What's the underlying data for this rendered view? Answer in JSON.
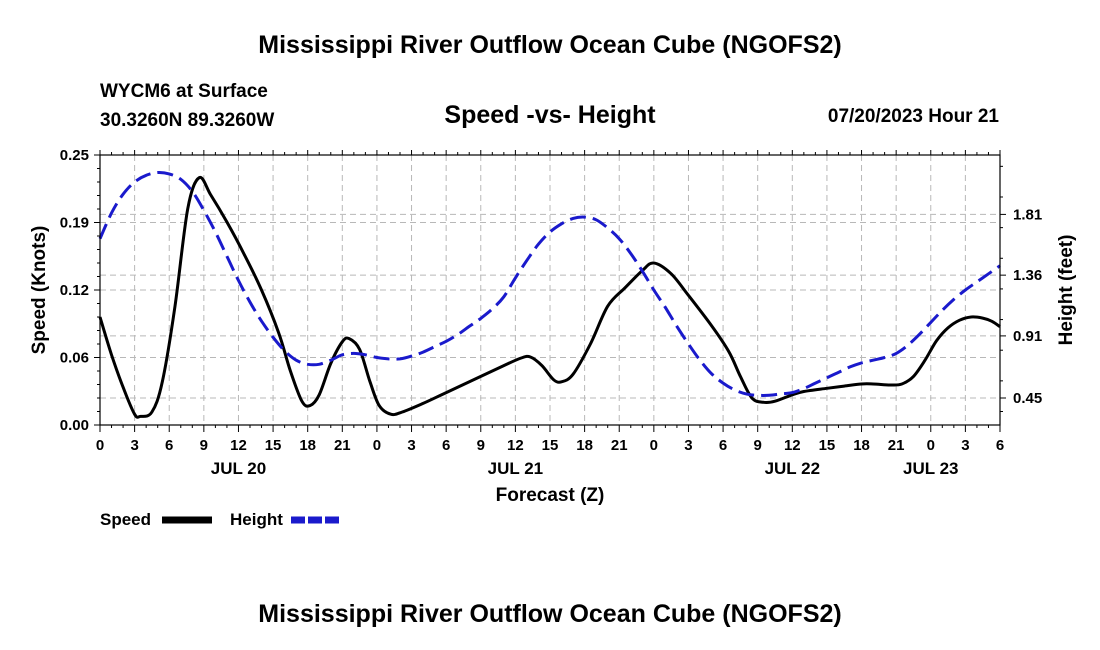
{
  "page": {
    "title": "Mississippi River Outflow Ocean Cube (NGOFS2)",
    "footer_title": "Mississippi River Outflow Ocean Cube (NGOFS2)",
    "station": "WYCM6 at Surface",
    "coords": "30.3260N  89.3260W",
    "subtitle": "Speed -vs- Height",
    "timestamp": "07/20/2023 Hour 21"
  },
  "chart_data": {
    "type": "line",
    "title": "Speed -vs- Height",
    "xlabel": "Forecast (Z)",
    "ylabel": "Speed (Knots)",
    "ylabel_right": "Height (feet)",
    "grid": true,
    "x_unit": "forecast hours from 07/20 00Z",
    "xlim": [
      0,
      78
    ],
    "ylim": [
      0,
      0.25
    ],
    "ylim_right": [
      0.25,
      2.25
    ],
    "y_ticks": [
      {
        "value": 0.0,
        "label": "0.00"
      },
      {
        "value": 0.0625,
        "label": "0.06"
      },
      {
        "value": 0.125,
        "label": "0.12"
      },
      {
        "value": 0.1875,
        "label": "0.19"
      },
      {
        "value": 0.25,
        "label": "0.25"
      }
    ],
    "y_ticks_right": [
      {
        "value": 0.45,
        "label": "0.45"
      },
      {
        "value": 0.91,
        "label": "0.91"
      },
      {
        "value": 1.36,
        "label": "1.36"
      },
      {
        "value": 1.81,
        "label": "1.81"
      }
    ],
    "x_ticks": [
      {
        "hour": 0,
        "label": "0"
      },
      {
        "hour": 3,
        "label": "3"
      },
      {
        "hour": 6,
        "label": "6"
      },
      {
        "hour": 9,
        "label": "9"
      },
      {
        "hour": 12,
        "label": "12"
      },
      {
        "hour": 15,
        "label": "15"
      },
      {
        "hour": 18,
        "label": "18"
      },
      {
        "hour": 21,
        "label": "21"
      },
      {
        "hour": 24,
        "label": "0"
      },
      {
        "hour": 27,
        "label": "3"
      },
      {
        "hour": 30,
        "label": "6"
      },
      {
        "hour": 33,
        "label": "9"
      },
      {
        "hour": 36,
        "label": "12"
      },
      {
        "hour": 39,
        "label": "15"
      },
      {
        "hour": 42,
        "label": "18"
      },
      {
        "hour": 45,
        "label": "21"
      },
      {
        "hour": 48,
        "label": "0"
      },
      {
        "hour": 51,
        "label": "3"
      },
      {
        "hour": 54,
        "label": "6"
      },
      {
        "hour": 57,
        "label": "9"
      },
      {
        "hour": 60,
        "label": "12"
      },
      {
        "hour": 63,
        "label": "15"
      },
      {
        "hour": 66,
        "label": "18"
      },
      {
        "hour": 69,
        "label": "21"
      },
      {
        "hour": 72,
        "label": "0"
      },
      {
        "hour": 75,
        "label": "3"
      },
      {
        "hour": 78,
        "label": "6"
      }
    ],
    "date_labels": [
      {
        "hour": 12,
        "label": "JUL 20"
      },
      {
        "hour": 36,
        "label": "JUL 21"
      },
      {
        "hour": 60,
        "label": "JUL 22"
      },
      {
        "hour": 72,
        "label": "JUL 23"
      }
    ],
    "series": [
      {
        "name": "Speed",
        "axis": "left",
        "color": "#000000",
        "dashed": false,
        "points": [
          [
            0,
            0.1
          ],
          [
            1,
            0.065
          ],
          [
            2,
            0.035
          ],
          [
            3,
            0.01
          ],
          [
            3.5,
            0.008
          ],
          [
            4.5,
            0.012
          ],
          [
            5.4,
            0.04
          ],
          [
            6.5,
            0.11
          ],
          [
            7.6,
            0.2
          ],
          [
            8.6,
            0.229
          ],
          [
            9.6,
            0.213
          ],
          [
            11,
            0.188
          ],
          [
            12.5,
            0.158
          ],
          [
            14,
            0.125
          ],
          [
            15.5,
            0.085
          ],
          [
            16.5,
            0.05
          ],
          [
            17.5,
            0.022
          ],
          [
            18.2,
            0.018
          ],
          [
            19,
            0.028
          ],
          [
            20,
            0.057
          ],
          [
            21,
            0.077
          ],
          [
            21.6,
            0.08
          ],
          [
            22.5,
            0.07
          ],
          [
            23.4,
            0.04
          ],
          [
            24.2,
            0.018
          ],
          [
            25.2,
            0.01
          ],
          [
            26.2,
            0.012
          ],
          [
            28,
            0.02
          ],
          [
            30,
            0.03
          ],
          [
            33,
            0.045
          ],
          [
            35,
            0.055
          ],
          [
            36.5,
            0.062
          ],
          [
            37.3,
            0.063
          ],
          [
            38.3,
            0.055
          ],
          [
            39.3,
            0.042
          ],
          [
            40,
            0.04
          ],
          [
            41,
            0.047
          ],
          [
            42.5,
            0.075
          ],
          [
            44,
            0.11
          ],
          [
            45.5,
            0.127
          ],
          [
            47,
            0.143
          ],
          [
            48,
            0.15
          ],
          [
            49.5,
            0.14
          ],
          [
            51,
            0.12
          ],
          [
            53,
            0.092
          ],
          [
            54.5,
            0.068
          ],
          [
            55.5,
            0.045
          ],
          [
            56.5,
            0.025
          ],
          [
            57.5,
            0.021
          ],
          [
            58.5,
            0.022
          ],
          [
            60,
            0.028
          ],
          [
            61,
            0.031
          ],
          [
            63,
            0.034
          ],
          [
            64.5,
            0.036
          ],
          [
            66,
            0.038
          ],
          [
            67,
            0.038
          ],
          [
            68.5,
            0.037
          ],
          [
            69.5,
            0.038
          ],
          [
            70.5,
            0.045
          ],
          [
            71.5,
            0.06
          ],
          [
            72.5,
            0.078
          ],
          [
            73.5,
            0.09
          ],
          [
            74.5,
            0.097
          ],
          [
            75.5,
            0.1
          ],
          [
            76.5,
            0.099
          ],
          [
            77.3,
            0.096
          ],
          [
            78,
            0.091
          ]
        ]
      },
      {
        "name": "Height",
        "axis": "right",
        "color": "#1a1acc",
        "dashed": true,
        "points": [
          [
            0,
            1.63
          ],
          [
            1,
            1.82
          ],
          [
            2,
            1.96
          ],
          [
            3,
            2.05
          ],
          [
            4,
            2.1
          ],
          [
            5,
            2.12
          ],
          [
            6,
            2.11
          ],
          [
            7,
            2.07
          ],
          [
            8,
            1.98
          ],
          [
            9,
            1.84
          ],
          [
            10,
            1.68
          ],
          [
            11,
            1.5
          ],
          [
            12,
            1.32
          ],
          [
            13,
            1.16
          ],
          [
            14,
            1.02
          ],
          [
            15,
            0.9
          ],
          [
            16,
            0.8
          ],
          [
            17,
            0.73
          ],
          [
            18,
            0.7
          ],
          [
            19,
            0.7
          ],
          [
            20,
            0.73
          ],
          [
            21,
            0.77
          ],
          [
            22,
            0.78
          ],
          [
            23,
            0.77
          ],
          [
            24,
            0.75
          ],
          [
            25,
            0.74
          ],
          [
            26,
            0.74
          ],
          [
            27,
            0.76
          ],
          [
            28,
            0.79
          ],
          [
            29,
            0.83
          ],
          [
            30,
            0.87
          ],
          [
            31,
            0.92
          ],
          [
            32,
            0.98
          ],
          [
            33,
            1.04
          ],
          [
            34,
            1.11
          ],
          [
            35,
            1.2
          ],
          [
            36,
            1.34
          ],
          [
            37,
            1.47
          ],
          [
            38,
            1.59
          ],
          [
            39,
            1.68
          ],
          [
            40,
            1.74
          ],
          [
            41,
            1.78
          ],
          [
            42,
            1.79
          ],
          [
            43,
            1.77
          ],
          [
            44,
            1.71
          ],
          [
            45,
            1.63
          ],
          [
            46,
            1.52
          ],
          [
            47,
            1.39
          ],
          [
            48,
            1.25
          ],
          [
            49,
            1.12
          ],
          [
            50,
            0.98
          ],
          [
            51,
            0.85
          ],
          [
            52,
            0.73
          ],
          [
            53,
            0.63
          ],
          [
            54,
            0.56
          ],
          [
            55,
            0.51
          ],
          [
            56,
            0.48
          ],
          [
            57,
            0.47
          ],
          [
            58,
            0.47
          ],
          [
            59,
            0.48
          ],
          [
            60,
            0.49
          ],
          [
            61,
            0.52
          ],
          [
            62,
            0.56
          ],
          [
            63,
            0.6
          ],
          [
            64,
            0.64
          ],
          [
            65,
            0.68
          ],
          [
            66,
            0.71
          ],
          [
            67,
            0.73
          ],
          [
            68,
            0.75
          ],
          [
            69,
            0.78
          ],
          [
            70,
            0.84
          ],
          [
            71,
            0.92
          ],
          [
            72,
            1.01
          ],
          [
            73,
            1.1
          ],
          [
            74,
            1.18
          ],
          [
            75,
            1.25
          ],
          [
            76,
            1.31
          ],
          [
            77,
            1.37
          ],
          [
            78,
            1.43
          ]
        ]
      }
    ],
    "legend": [
      {
        "name": "Speed",
        "label": "Speed",
        "color": "#000000",
        "dashed": false
      },
      {
        "name": "Height",
        "label": "Height",
        "color": "#1a1acc",
        "dashed": true
      }
    ]
  }
}
